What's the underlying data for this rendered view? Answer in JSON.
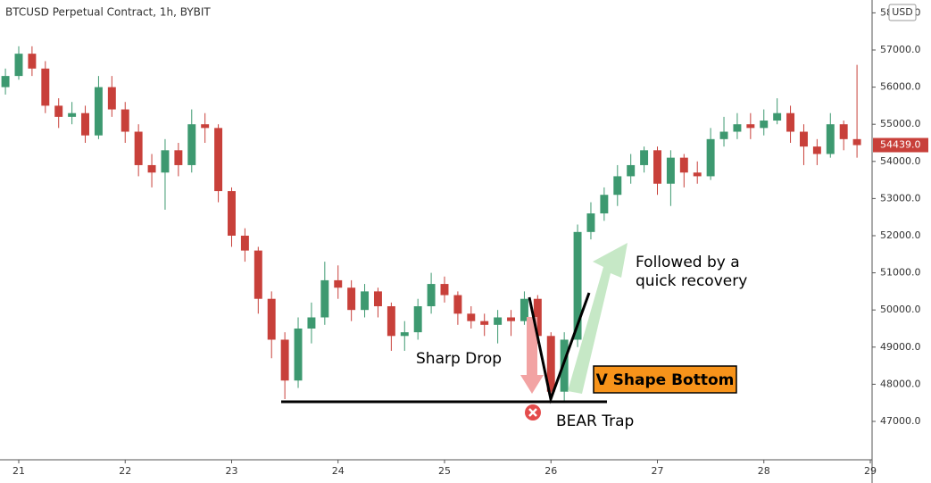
{
  "chart_data": {
    "type": "candlestick",
    "title": "BTCUSD Perpetual Contract, 1h, BYBIT",
    "currency": "USD",
    "up_color": "#3d9970",
    "down_color": "#c8403a",
    "grid": false,
    "x": [
      20.875,
      21,
      21.125,
      21.25,
      21.375,
      21.5,
      21.625,
      21.75,
      21.875,
      22,
      22.125,
      22.25,
      22.375,
      22.5,
      22.625,
      22.75,
      22.875,
      23,
      23.125,
      23.25,
      23.375,
      23.5,
      23.625,
      23.75,
      23.875,
      24,
      24.125,
      24.25,
      24.375,
      24.5,
      24.625,
      24.75,
      24.875,
      25,
      25.125,
      25.25,
      25.375,
      25.5,
      25.625,
      25.75,
      25.875,
      26,
      26.125,
      26.25,
      26.375,
      26.5,
      26.625,
      26.75,
      26.875,
      27,
      27.125,
      27.25,
      27.375,
      27.5,
      27.625,
      27.75,
      27.875,
      28,
      28.125,
      28.25,
      28.375,
      28.5,
      28.625,
      28.75,
      28.875
    ],
    "open": [
      56000,
      56300,
      56900,
      56500,
      55500,
      55200,
      55300,
      54700,
      56000,
      55400,
      54800,
      53900,
      53700,
      54300,
      53900,
      55000,
      54900,
      53200,
      52000,
      51600,
      50300,
      49200,
      48100,
      49500,
      49800,
      50800,
      50600,
      50000,
      50500,
      50100,
      49300,
      49400,
      50100,
      50700,
      50400,
      49900,
      49700,
      49600,
      49800,
      49700,
      50300,
      49300,
      47800,
      49200,
      52100,
      52600,
      53100,
      53600,
      53900,
      54300,
      53400,
      54100,
      53700,
      53600,
      54600,
      54800,
      55000,
      54900,
      55100,
      55300,
      54800,
      54400,
      54200,
      55000,
      54600
    ],
    "high": [
      56500,
      57100,
      57100,
      56700,
      55700,
      55600,
      55500,
      56300,
      56300,
      55600,
      55000,
      54200,
      54600,
      54500,
      55400,
      55300,
      55000,
      53300,
      52200,
      51700,
      50500,
      49400,
      49800,
      50200,
      51300,
      51200,
      50800,
      50700,
      50600,
      50200,
      49700,
      50300,
      51000,
      50900,
      50500,
      50100,
      49900,
      50000,
      50000,
      50500,
      50400,
      49400,
      49400,
      52300,
      52900,
      53300,
      53900,
      54200,
      54400,
      54400,
      54300,
      54200,
      54000,
      54900,
      55200,
      55300,
      55300,
      55400,
      55700,
      55500,
      55000,
      54600,
      55300,
      55100,
      56600
    ],
    "low": [
      55800,
      56200,
      56300,
      55300,
      54900,
      55000,
      54500,
      54600,
      55200,
      54500,
      53600,
      53300,
      52700,
      53600,
      53700,
      54500,
      52900,
      51700,
      51300,
      49900,
      48700,
      47600,
      47900,
      49100,
      49600,
      50300,
      49700,
      49800,
      49800,
      48900,
      48900,
      49200,
      49900,
      50200,
      49600,
      49500,
      49300,
      49100,
      49300,
      49600,
      49100,
      47600,
      47500,
      49000,
      51900,
      52400,
      52800,
      53400,
      53700,
      53100,
      52800,
      53300,
      53400,
      53500,
      54400,
      54600,
      54600,
      54700,
      55000,
      54500,
      53900,
      53900,
      54100,
      54300,
      54100
    ],
    "close": [
      56300,
      56900,
      56500,
      55500,
      55200,
      55300,
      54700,
      56000,
      55400,
      54800,
      53900,
      53700,
      54300,
      53900,
      55000,
      54900,
      53200,
      52000,
      51600,
      50300,
      49200,
      48100,
      49500,
      49800,
      50800,
      50600,
      50000,
      50500,
      50100,
      49300,
      49400,
      50100,
      50700,
      50400,
      49900,
      49700,
      49600,
      49800,
      49700,
      50300,
      49300,
      47800,
      49200,
      52100,
      52600,
      53100,
      53600,
      53900,
      54300,
      53400,
      54100,
      53700,
      53600,
      54600,
      54800,
      55000,
      54900,
      55100,
      55300,
      54800,
      54400,
      54200,
      55000,
      54600,
      54439
    ],
    "last_price": {
      "value": 54439,
      "label": "54439.0"
    },
    "xlim": [
      20.824,
      29.0
    ],
    "xticks": [
      21,
      22,
      23,
      24,
      25,
      26,
      27,
      28,
      29
    ],
    "ylim": [
      45966,
      58346
    ],
    "yticks": [
      {
        "value": 47000,
        "label": "47000.0"
      },
      {
        "value": 48000,
        "label": "48000.0"
      },
      {
        "value": 49000,
        "label": "49000.0"
      },
      {
        "value": 50000,
        "label": "50000.0"
      },
      {
        "value": 51000,
        "label": "51000.0"
      },
      {
        "value": 52000,
        "label": "52000.0"
      },
      {
        "value": 53000,
        "label": "53000.0"
      },
      {
        "value": 54000,
        "label": "54000.0"
      },
      {
        "value": 55000,
        "label": "55000.0"
      },
      {
        "value": 56000,
        "label": "56000.0"
      },
      {
        "value": 57000,
        "label": "57000.0"
      },
      {
        "value": 58000,
        "label": "58000.0"
      }
    ],
    "annotations": {
      "sharp_drop": "Sharp Drop",
      "recovery": [
        "Followed by a",
        "quick recovery"
      ],
      "v_shape": "V Shape Bottom",
      "bear_trap": "BEAR Trap"
    }
  }
}
